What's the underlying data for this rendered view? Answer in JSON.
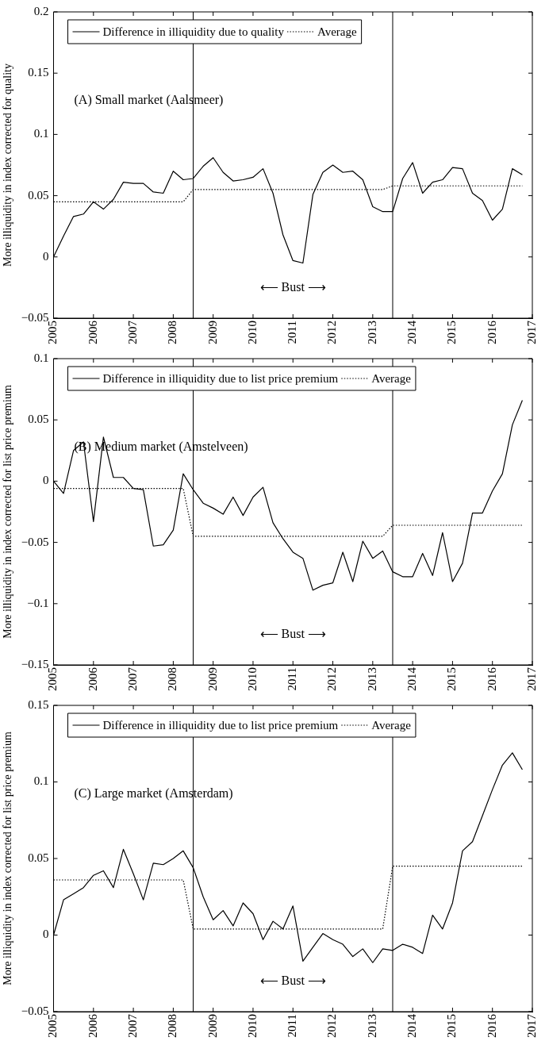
{
  "chart_data": [
    {
      "type": "line",
      "title": "(A) Small market (Aalsmeer)",
      "ylabel": "More illiquidity in index corrected for quality",
      "x": [
        2005,
        2005.25,
        2005.5,
        2005.75,
        2006,
        2006.25,
        2006.5,
        2006.75,
        2007,
        2007.25,
        2007.5,
        2007.75,
        2008,
        2008.25,
        2008.5,
        2008.75,
        2009,
        2009.25,
        2009.5,
        2009.75,
        2010,
        2010.25,
        2010.5,
        2010.75,
        2011,
        2011.25,
        2011.5,
        2011.75,
        2012,
        2012.25,
        2012.5,
        2012.75,
        2013,
        2013.25,
        2013.5,
        2013.75,
        2014,
        2014.25,
        2014.5,
        2014.75,
        2015,
        2015.25,
        2015.5,
        2015.75,
        2016,
        2016.25,
        2016.5,
        2016.75
      ],
      "series": [
        {
          "name": "Difference in illiquidity due to quality",
          "color": "#000000",
          "line_style": "solid",
          "values": [
            0,
            0.017,
            0.033,
            0.035,
            0.045,
            0.039,
            0.047,
            0.061,
            0.06,
            0.06,
            0.053,
            0.052,
            0.07,
            0.063,
            0.064,
            0.074,
            0.081,
            0.069,
            0.062,
            0.063,
            0.065,
            0.072,
            0.052,
            0.018,
            -0.003,
            -0.005,
            0.051,
            0.069,
            0.075,
            0.069,
            0.07,
            0.063,
            0.041,
            0.037,
            0.037,
            0.064,
            0.077,
            0.052,
            0.061,
            0.063,
            0.073,
            0.072,
            0.052,
            0.046,
            0.03,
            0.039,
            0.072,
            0.067
          ]
        },
        {
          "name": "Average",
          "color": "#000000",
          "line_style": "dotted",
          "x": [
            2005,
            2008.25,
            2008.5,
            2013.25,
            2013.5,
            2016.75
          ],
          "values": [
            0.045,
            0.045,
            0.055,
            0.055,
            0.058,
            0.058
          ]
        }
      ],
      "xlim": [
        2005,
        2017
      ],
      "xticks": [
        2005,
        2006,
        2007,
        2008,
        2009,
        2010,
        2011,
        2012,
        2013,
        2014,
        2015,
        2016,
        2017
      ],
      "ylim": [
        -0.05,
        0.2
      ],
      "yticks": [
        {
          "value": -0.05,
          "label": "−0.05"
        },
        0,
        0.05,
        0.1,
        0.15,
        0.2
      ],
      "ref_lines": [
        {
          "axis": "x",
          "value": 2008.5,
          "color": "#000000"
        },
        {
          "axis": "x",
          "value": 2013.5,
          "color": "#000000"
        }
      ],
      "annotations": [
        "⟵ Bust ⟶"
      ],
      "legend": "top left",
      "marker": "none"
    },
    {
      "type": "line",
      "title": "(B) Medium market (Amstelveen)",
      "ylabel": "More illiquidity in index corrected for list price premium",
      "x": [
        2005,
        2005.25,
        2005.5,
        2005.75,
        2006,
        2006.25,
        2006.5,
        2006.75,
        2007,
        2007.25,
        2007.5,
        2007.75,
        2008,
        2008.25,
        2008.5,
        2008.75,
        2009,
        2009.25,
        2009.5,
        2009.75,
        2010,
        2010.25,
        2010.5,
        2010.75,
        2011,
        2011.25,
        2011.5,
        2011.75,
        2012,
        2012.25,
        2012.5,
        2012.75,
        2013,
        2013.25,
        2013.5,
        2013.75,
        2014,
        2014.25,
        2014.5,
        2014.75,
        2015,
        2015.25,
        2015.5,
        2015.75,
        2016,
        2016.25,
        2016.5,
        2016.75
      ],
      "series": [
        {
          "name": "Difference in illiquidity due to list price premium",
          "color": "#000000",
          "line_style": "solid",
          "values": [
            0,
            -0.01,
            0.025,
            0.032,
            -0.033,
            0.036,
            0.003,
            0.003,
            -0.006,
            -0.007,
            -0.053,
            -0.052,
            -0.04,
            0.006,
            -0.007,
            -0.018,
            -0.022,
            -0.027,
            -0.013,
            -0.028,
            -0.013,
            -0.005,
            -0.034,
            -0.047,
            -0.058,
            -0.063,
            -0.089,
            -0.085,
            -0.083,
            -0.058,
            -0.082,
            -0.049,
            -0.063,
            -0.057,
            -0.074,
            -0.078,
            -0.078,
            -0.059,
            -0.077,
            -0.042,
            -0.082,
            -0.067,
            -0.026,
            -0.026,
            -0.008,
            0.006,
            0.046,
            0.066
          ]
        },
        {
          "name": "Average",
          "color": "#000000",
          "line_style": "dotted",
          "x": [
            2005,
            2008.25,
            2008.5,
            2013.25,
            2013.5,
            2016.75
          ],
          "values": [
            -0.006,
            -0.006,
            -0.045,
            -0.045,
            -0.036,
            -0.036
          ]
        }
      ],
      "xlim": [
        2005,
        2017
      ],
      "xticks": [
        2005,
        2006,
        2007,
        2008,
        2009,
        2010,
        2011,
        2012,
        2013,
        2014,
        2015,
        2016,
        2017
      ],
      "ylim": [
        -0.15,
        0.1
      ],
      "yticks": [
        {
          "value": -0.15,
          "label": "−0.15"
        },
        {
          "value": -0.1,
          "label": "−0.1"
        },
        {
          "value": -0.05,
          "label": "−0.05"
        },
        0,
        0.05,
        0.1
      ],
      "ref_lines": [
        {
          "axis": "x",
          "value": 2008.5,
          "color": "#000000"
        },
        {
          "axis": "x",
          "value": 2013.5,
          "color": "#000000"
        }
      ],
      "annotations": [
        "⟵ Bust ⟶"
      ],
      "legend": "top left",
      "marker": "none"
    },
    {
      "type": "line",
      "title": "(C) Large market (Amsterdam)",
      "ylabel": "More illiquidity in index corrected for list price premium",
      "x": [
        2005,
        2005.25,
        2005.5,
        2005.75,
        2006,
        2006.25,
        2006.5,
        2006.75,
        2007,
        2007.25,
        2007.5,
        2007.75,
        2008,
        2008.25,
        2008.5,
        2008.75,
        2009,
        2009.25,
        2009.5,
        2009.75,
        2010,
        2010.25,
        2010.5,
        2010.75,
        2011,
        2011.25,
        2011.5,
        2011.75,
        2012,
        2012.25,
        2012.5,
        2012.75,
        2013,
        2013.25,
        2013.5,
        2013.75,
        2014,
        2014.25,
        2014.5,
        2014.75,
        2015,
        2015.25,
        2015.5,
        2015.75,
        2016,
        2016.25,
        2016.5,
        2016.75
      ],
      "series": [
        {
          "name": "Difference in illiquidity due to list price premium",
          "color": "#000000",
          "line_style": "solid",
          "values": [
            0,
            0.023,
            0.027,
            0.031,
            0.039,
            0.042,
            0.031,
            0.056,
            0.04,
            0.023,
            0.047,
            0.046,
            0.05,
            0.055,
            0.044,
            0.025,
            0.01,
            0.016,
            0.006,
            0.021,
            0.014,
            -0.003,
            0.009,
            0.004,
            0.019,
            -0.017,
            -0.008,
            0.001,
            -0.003,
            -0.006,
            -0.014,
            -0.009,
            -0.018,
            -0.009,
            -0.01,
            -0.006,
            -0.008,
            -0.012,
            0.013,
            0.004,
            0.021,
            0.055,
            0.061,
            0.078,
            0.095,
            0.111,
            0.119,
            0.108
          ]
        },
        {
          "name": "Average",
          "color": "#000000",
          "line_style": "dotted",
          "x": [
            2005,
            2008.25,
            2008.5,
            2013.25,
            2013.5,
            2016.75
          ],
          "values": [
            0.036,
            0.036,
            0.004,
            0.004,
            0.045,
            0.045
          ]
        }
      ],
      "xlim": [
        2005,
        2017
      ],
      "xticks": [
        2005,
        2006,
        2007,
        2008,
        2009,
        2010,
        2011,
        2012,
        2013,
        2014,
        2015,
        2016,
        2017
      ],
      "ylim": [
        -0.05,
        0.15
      ],
      "yticks": [
        {
          "value": -0.05,
          "label": "−0.05"
        },
        0,
        0.05,
        0.1,
        0.15
      ],
      "ref_lines": [
        {
          "axis": "x",
          "value": 2008.5,
          "color": "#000000"
        },
        {
          "axis": "x",
          "value": 2013.5,
          "color": "#000000"
        }
      ],
      "annotations": [
        "⟵ Bust ⟶"
      ],
      "legend": "top left",
      "marker": "none"
    }
  ]
}
